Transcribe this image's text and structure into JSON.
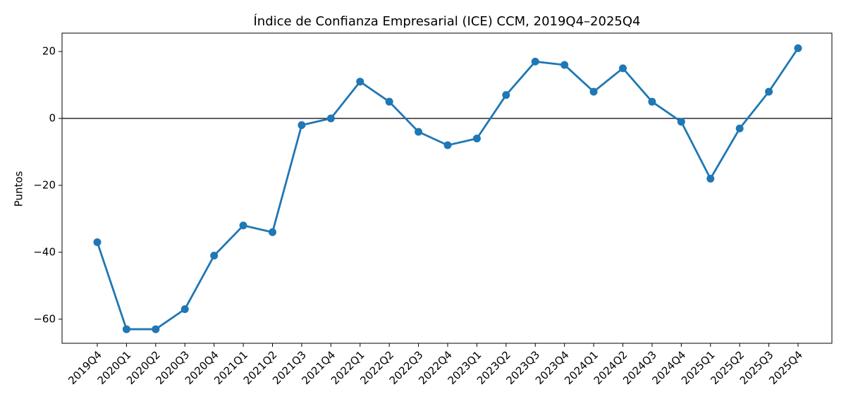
{
  "chart_data": {
    "type": "line",
    "title": "Índice de Confianza Empresarial (ICE) CCM, 2019Q4–2025Q4",
    "y_label": "Puntos",
    "categories": [
      "2019Q4",
      "2020Q1",
      "2020Q2",
      "2020Q3",
      "2020Q4",
      "2021Q1",
      "2021Q2",
      "2021Q3",
      "2021Q4",
      "2022Q1",
      "2022Q2",
      "2022Q3",
      "2022Q4",
      "2023Q1",
      "2023Q2",
      "2023Q3",
      "2023Q4",
      "2024Q1",
      "2024Q2",
      "2024Q3",
      "2024Q4",
      "2025Q1",
      "2025Q2",
      "2025Q3",
      "2025Q4"
    ],
    "series": [
      {
        "name": "ICE",
        "color": "#1f77b4",
        "values": [
          -37,
          -63,
          -63,
          -57,
          -41,
          -32,
          -34,
          -2,
          0,
          11,
          5,
          -4,
          -8,
          -6,
          7,
          17,
          16,
          8,
          15,
          5,
          -1,
          -18,
          -3,
          8,
          21
        ]
      }
    ],
    "ylim": [
      -67.2,
      25.5
    ],
    "yticks": [
      {
        "value": -60,
        "label": "−60"
      },
      {
        "value": -40,
        "label": "−40"
      },
      {
        "value": -20,
        "label": "−20"
      },
      0,
      20
    ],
    "zero_line": true,
    "grid": false,
    "legend": false
  }
}
